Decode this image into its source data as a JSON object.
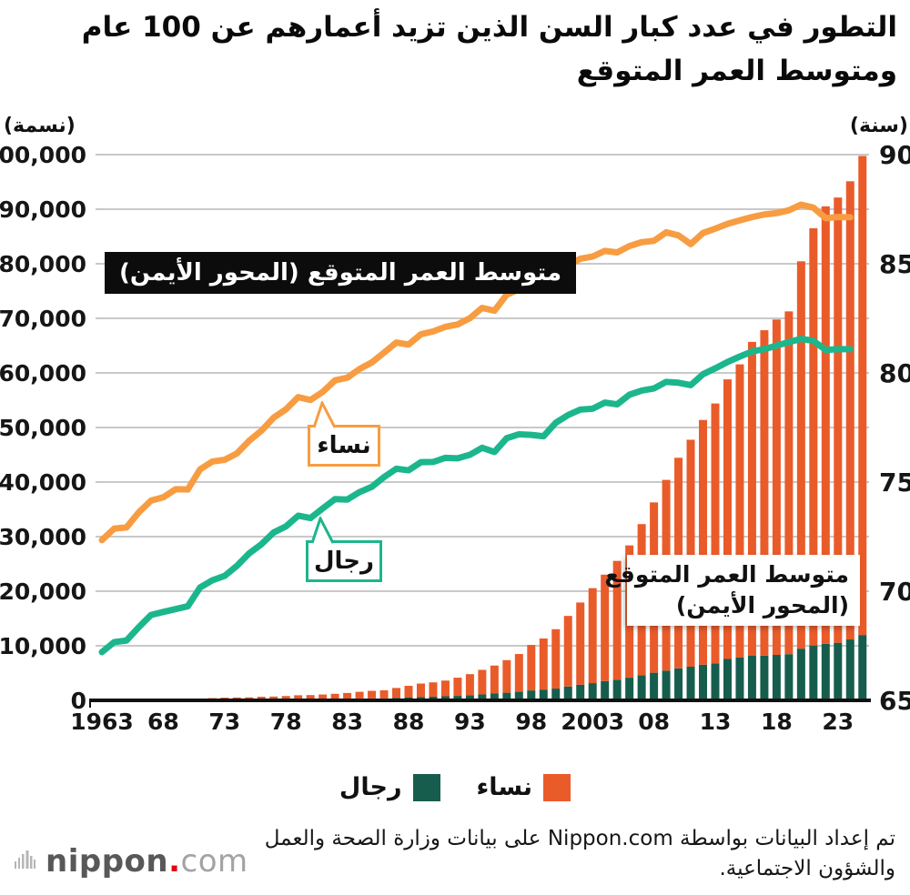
{
  "title_line1": "التطور في عدد كبار السن الذين تزيد أعمارهم عن 100 عام",
  "title_line2": "ومتوسط العمر المتوقع",
  "annotations": {
    "life_expectancy_box": "متوسط العمر المتوقع (المحور الأيمن)",
    "bars_box_line1": "متوسط العمر المتوقع",
    "bars_box_line2": "(المحور الأيمن)",
    "women_callout": "نساء",
    "men_callout": "رجال"
  },
  "legend": {
    "men_label": "رجال",
    "women_label": "نساء",
    "men_color": "#175D4E",
    "women_color": "#EA5B2A"
  },
  "source_line1": "تم إعداد البيانات بواسطة Nippon.com على بيانات وزارة الصحة والعمل",
  "source_line2": "والشؤون الاجتماعية.",
  "logo": {
    "name": "nippon",
    "dot": ".",
    "tld": "com"
  },
  "chart_data": {
    "type": "bar",
    "subtype": "stacked-bars-with-lines",
    "title": "التطور في عدد كبار السن الذين تزيد أعمارهم عن 100 عام ومتوسط العمر المتوقع",
    "grid": true,
    "left_axis": {
      "label": "(نسمة)",
      "min": 0,
      "max": 100000,
      "ticks": [
        "0",
        "10,000",
        "20,000",
        "30,000",
        "40,000",
        "50,000",
        "60,000",
        "70,000",
        "80,000",
        "90,000",
        "100,000"
      ]
    },
    "right_axis": {
      "label": "(سنة)",
      "min": 65,
      "max": 90,
      "ticks": [
        "65",
        "70",
        "75",
        "80",
        "85",
        "90"
      ]
    },
    "x_ticks": [
      "1963",
      "68",
      "73",
      "78",
      "83",
      "88",
      "93",
      "98",
      "2003",
      "08",
      "13",
      "18",
      "23"
    ],
    "years": [
      1963,
      1964,
      1965,
      1966,
      1967,
      1968,
      1969,
      1970,
      1971,
      1972,
      1973,
      1974,
      1975,
      1976,
      1977,
      1978,
      1979,
      1980,
      1981,
      1982,
      1983,
      1984,
      1985,
      1986,
      1987,
      1988,
      1989,
      1990,
      1991,
      1992,
      1993,
      1994,
      1995,
      1996,
      1997,
      1998,
      1999,
      2000,
      2001,
      2002,
      2003,
      2004,
      2005,
      2006,
      2007,
      2008,
      2009,
      2010,
      2011,
      2012,
      2013,
      2014,
      2015,
      2016,
      2017,
      2018,
      2019,
      2020,
      2021,
      2022,
      2023,
      2024,
      2025
    ],
    "bars": {
      "axis": "left",
      "stacked": true,
      "series": [
        {
          "name": "رجال",
          "color": "#175D4E",
          "values": [
            20,
            31,
            36,
            46,
            52,
            67,
            70,
            62,
            70,
            78,
            91,
            96,
            102,
            113,
            122,
            132,
            162,
            174,
            202,
            233,
            269,
            347,
            359,
            361,
            462,
            562,
            630,
            680,
            749,
            822,
            943,
            1093,
            1255,
            1400,
            1570,
            1812,
            1973,
            2158,
            2541,
            2875,
            3159,
            3523,
            3779,
            4150,
            4613,
            5063,
            5447,
            5869,
            6162,
            6534,
            6791,
            7586,
            7840,
            8167,
            8197,
            8331,
            8463,
            9475,
            10060,
            10365,
            10550,
            11161,
            11979
          ]
        },
        {
          "name": "نساء",
          "color": "#EA5B2A",
          "values": [
            133,
            160,
            162,
            206,
            201,
            260,
            261,
            248,
            269,
            327,
            404,
            431,
            446,
            553,
            575,
            660,
            775,
            794,
            870,
            967,
            1085,
            1216,
            1381,
            1490,
            1809,
            2106,
            2448,
            2618,
            2876,
            3330,
            3859,
            4500,
            5123,
            5973,
            6921,
            8346,
            9373,
            10878,
            12934,
            15059,
            17402,
            19515,
            21775,
            24245,
            27682,
            31213,
            34952,
            38580,
            41594,
            44842,
            47606,
            51234,
            53728,
            57525,
            59627,
            61454,
            62811,
            70975,
            76450,
            80161,
            81589,
            83958,
            87784
          ]
        }
      ]
    },
    "lines": {
      "axis": "right",
      "start_year": 1963,
      "end_year": 2024,
      "series": [
        {
          "name": "نساء",
          "color": "#F89C42",
          "values": [
            72.34,
            72.87,
            72.92,
            73.61,
            74.15,
            74.3,
            74.67,
            74.66,
            75.58,
            75.94,
            76.02,
            76.31,
            76.89,
            77.35,
            77.95,
            78.33,
            78.89,
            78.76,
            79.13,
            79.66,
            79.78,
            80.18,
            80.48,
            80.93,
            81.39,
            81.3,
            81.77,
            81.9,
            82.11,
            82.22,
            82.51,
            82.98,
            82.85,
            83.59,
            83.82,
            84.01,
            83.99,
            84.6,
            84.93,
            85.23,
            85.33,
            85.59,
            85.52,
            85.81,
            85.99,
            86.05,
            86.44,
            86.3,
            85.9,
            86.41,
            86.61,
            86.83,
            86.99,
            87.14,
            87.26,
            87.32,
            87.45,
            87.71,
            87.57,
            87.09,
            87.14,
            87.13
          ]
        },
        {
          "name": "رجال",
          "color": "#1CB68D",
          "values": [
            67.21,
            67.67,
            67.74,
            68.35,
            68.91,
            69.05,
            69.18,
            69.31,
            70.17,
            70.5,
            70.7,
            71.16,
            71.73,
            72.15,
            72.69,
            72.97,
            73.46,
            73.35,
            73.79,
            74.22,
            74.2,
            74.54,
            74.78,
            75.23,
            75.61,
            75.54,
            75.91,
            75.92,
            76.11,
            76.09,
            76.25,
            76.57,
            76.38,
            77.01,
            77.19,
            77.16,
            77.1,
            77.72,
            78.07,
            78.32,
            78.36,
            78.64,
            78.56,
            79.0,
            79.19,
            79.29,
            79.59,
            79.55,
            79.44,
            79.94,
            80.21,
            80.5,
            80.75,
            80.98,
            81.09,
            81.25,
            81.41,
            81.56,
            81.47,
            81.05,
            81.09,
            81.09
          ]
        }
      ]
    }
  }
}
